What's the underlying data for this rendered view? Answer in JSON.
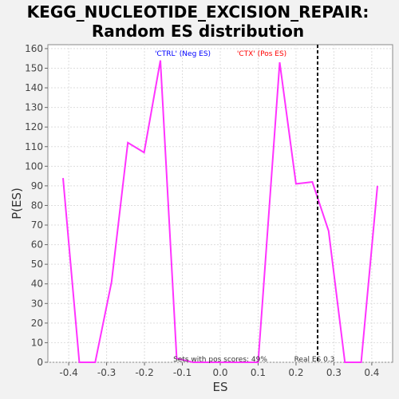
{
  "chart_data": {
    "type": "line",
    "title": "KEGG_NUCLEOTIDE_EXCISION_REPAIR:",
    "subtitle": "Random ES distribution",
    "xlabel": "ES",
    "ylabel": "P(ES)",
    "xlim": [
      -0.455,
      0.455
    ],
    "ylim": [
      0,
      162
    ],
    "xticks": [
      -0.4,
      -0.3,
      -0.2,
      -0.1,
      0.0,
      0.1,
      0.2,
      0.3,
      0.4
    ],
    "xtick_labels": [
      "-0.4",
      "-0.3",
      "-0.2",
      "-0.1",
      "0.0",
      "0.1",
      "0.2",
      "0.3",
      "0.4"
    ],
    "yticks": [
      0,
      10,
      20,
      30,
      40,
      50,
      60,
      70,
      80,
      90,
      100,
      110,
      120,
      130,
      140,
      150,
      160
    ],
    "ytick_labels": [
      "0",
      "10",
      "20",
      "30",
      "40",
      "50",
      "60",
      "70",
      "80",
      "90",
      "100",
      "110",
      "120",
      "130",
      "140",
      "150",
      "160"
    ],
    "grid": true,
    "series": [
      {
        "color": "#ff33ff",
        "x": [
          -0.415,
          -0.372,
          -0.33,
          -0.287,
          -0.244,
          -0.201,
          -0.158,
          -0.115,
          -0.072,
          -0.029,
          0.014,
          0.057,
          0.1,
          0.157,
          0.2,
          0.243,
          0.286,
          0.329,
          0.372,
          0.415
        ],
        "y": [
          94,
          0,
          0,
          41,
          112,
          107,
          154,
          2,
          0,
          0,
          0,
          0,
          0,
          153,
          91,
          92,
          67,
          0,
          0,
          90
        ]
      }
    ],
    "reference_line": {
      "x": 0.257,
      "label": "Real ES 0.3",
      "color": "#000000"
    },
    "annotations": {
      "neg_label": "'CTRL' (Neg ES)",
      "neg_color": "#0000ff",
      "pos_label": "'CTX' (Pos ES)",
      "pos_color": "#ff0000",
      "pos_scores": "Sets with pos scores: 49%"
    }
  }
}
